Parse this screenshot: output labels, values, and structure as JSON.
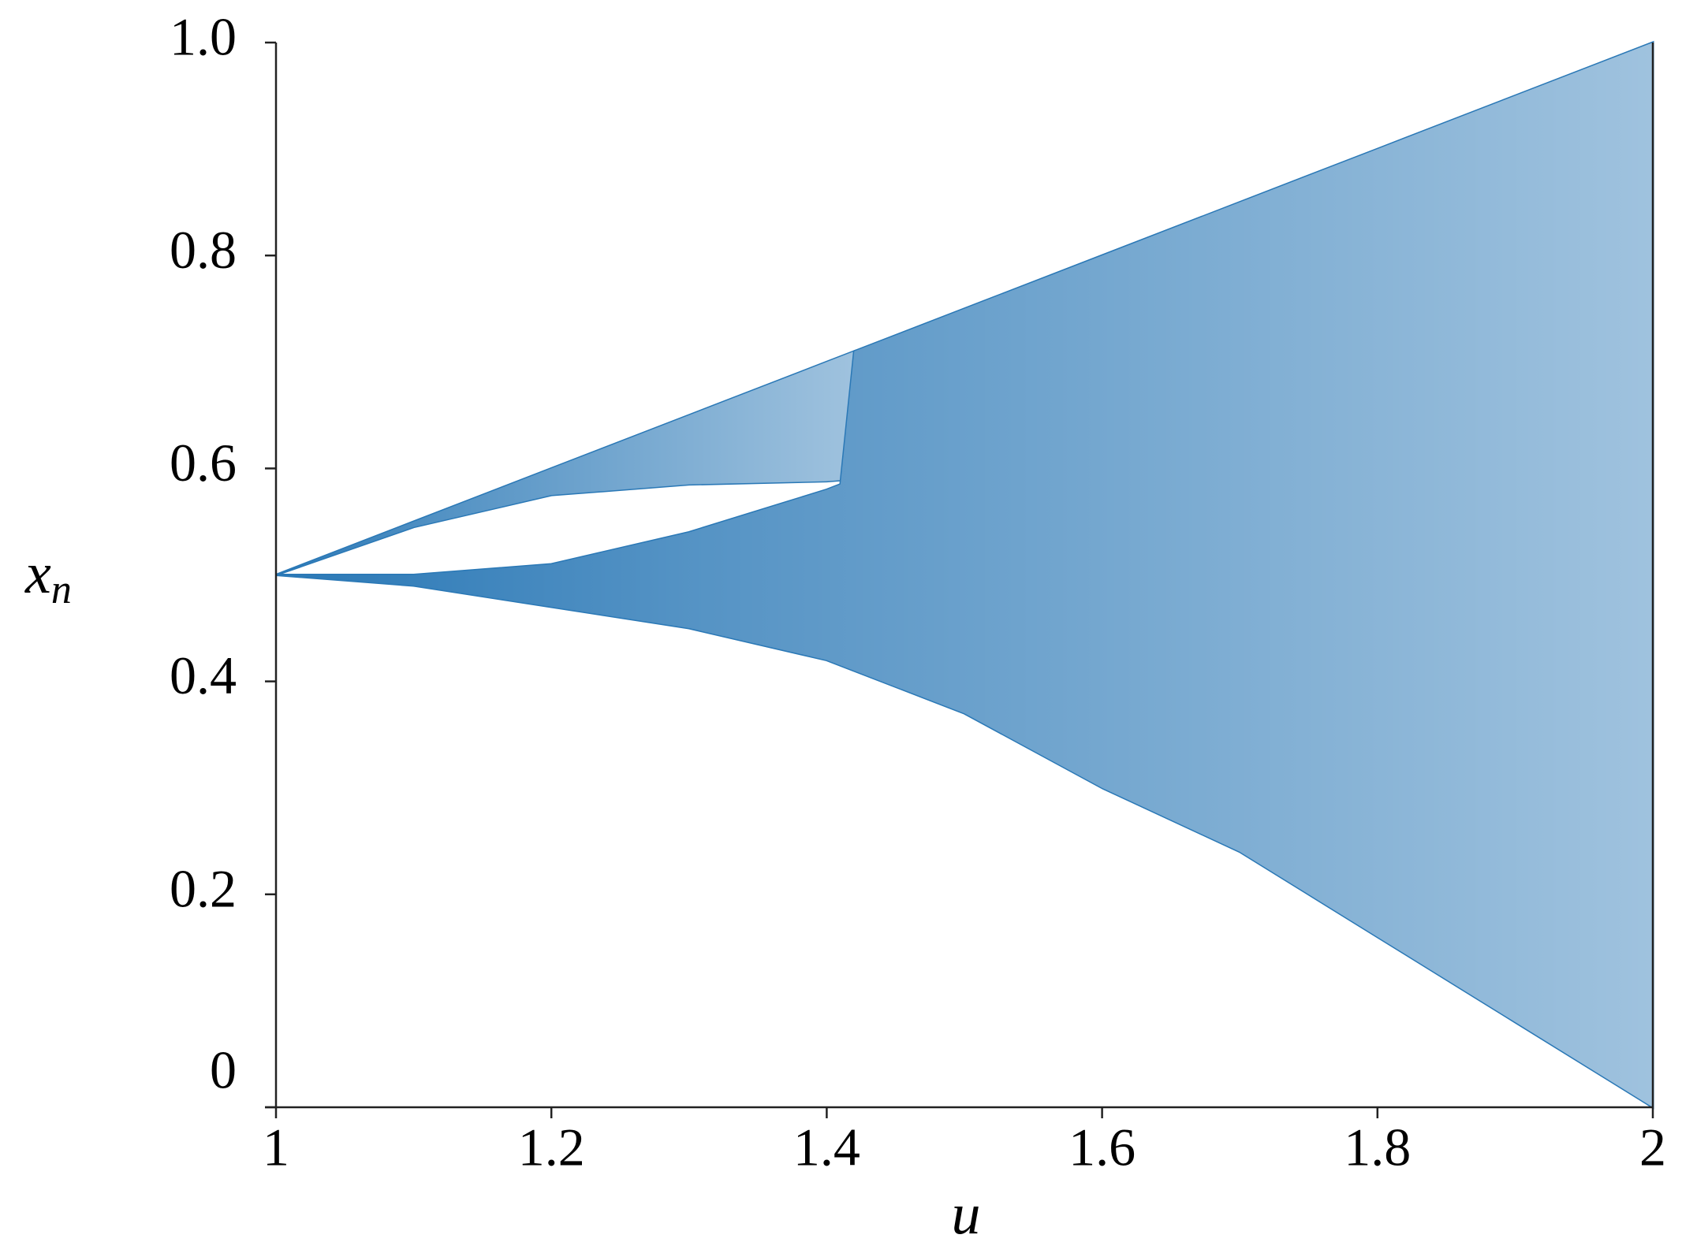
{
  "chart_data": {
    "type": "band",
    "xlabel": "u",
    "ylabel": "x",
    "ylabel_subscript": "n",
    "xlim": [
      1,
      2
    ],
    "ylim": [
      0,
      1
    ],
    "xticks": [
      1,
      1.2,
      1.4,
      1.6,
      1.8,
      2
    ],
    "yticks": [
      0,
      0.2,
      0.4,
      0.6,
      0.8,
      {
        "value": 1,
        "label": "1.0"
      }
    ],
    "series": [
      {
        "color": "#2a78b6",
        "x": [
          1,
          1.1,
          1.2,
          1.3,
          1.4,
          1.42
        ],
        "lower": [
          0.5,
          0.545,
          0.575,
          0.585,
          0.588,
          0.59
        ],
        "upper": [
          0.5,
          0.55,
          0.6,
          0.65,
          0.7,
          0.71
        ]
      },
      {
        "color": "#2a78b6",
        "x": [
          1,
          1.1,
          1.2,
          1.3,
          1.4,
          1.41,
          1.42,
          1.5,
          1.6,
          1.7,
          1.8,
          1.9,
          2
        ],
        "lower": [
          0.5,
          0.49,
          0.47,
          0.45,
          0.42,
          0.415,
          0.41,
          0.37,
          0.3,
          0.24,
          0.16,
          0.08,
          0
        ],
        "upper": [
          0.5,
          0.5,
          0.51,
          0.54,
          0.58,
          0.585,
          0.71,
          0.75,
          0.8,
          0.85,
          0.9,
          0.95,
          1
        ]
      }
    ]
  }
}
